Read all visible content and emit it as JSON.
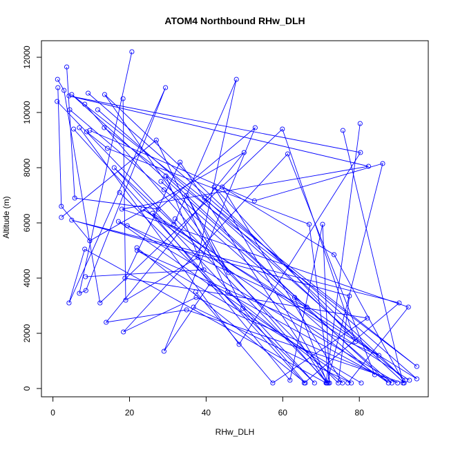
{
  "chart_data": {
    "type": "line",
    "title": "ATOM4 Northbound RHw_DLH",
    "xlabel": "RHw_DLH",
    "ylabel": "Altitude (m)",
    "xlim": [
      -3,
      98
    ],
    "ylim": [
      -300,
      12600
    ],
    "x_ticks": [
      0,
      20,
      40,
      60,
      80
    ],
    "y_ticks": [
      0,
      2000,
      4000,
      6000,
      8000,
      10000,
      12000
    ],
    "x_tick_labels": [
      "0",
      "20",
      "40",
      "60",
      "80"
    ],
    "y_tick_labels": [
      "0",
      "2000",
      "4000",
      "6000",
      "8000",
      "10000",
      "12000"
    ],
    "grid": false,
    "marker": "open-circle",
    "color": "#0000ff",
    "series": [
      {
        "points": [
          [
            20.6,
            12200
          ],
          [
            6.9,
            3450
          ],
          [
            8.6,
            3550
          ],
          [
            29.4,
            10900
          ],
          [
            4.2,
            3100
          ],
          [
            8.3,
            5050
          ],
          [
            71.3,
            200
          ],
          [
            80.2,
            9600
          ]
        ]
      },
      {
        "points": [
          [
            18.3,
            10500
          ],
          [
            19.0,
            3200
          ],
          [
            37.9,
            4750
          ],
          [
            47.9,
            11200
          ],
          [
            31.6,
            5950
          ],
          [
            16.0,
            8000
          ],
          [
            68.3,
            200
          ],
          [
            17.4,
            7100
          ]
        ]
      },
      {
        "points": [
          [
            3.6,
            11650
          ],
          [
            5.7,
            6900
          ],
          [
            27.5,
            6500
          ],
          [
            52.8,
            9450
          ],
          [
            29.0,
            1350
          ],
          [
            41.0,
            3800
          ],
          [
            88.5,
            200
          ],
          [
            28.2,
            7500
          ]
        ]
      },
      {
        "points": [
          [
            1.3,
            10900
          ],
          [
            2.2,
            6600
          ],
          [
            9.6,
            5350
          ],
          [
            49.9,
            8550
          ],
          [
            13.9,
            2400
          ],
          [
            34.9,
            2850
          ],
          [
            91.4,
            200
          ],
          [
            75.7,
            9350
          ]
        ]
      },
      {
        "points": [
          [
            1.2,
            11200
          ],
          [
            2.9,
            10800
          ],
          [
            12.3,
            3100
          ],
          [
            59.9,
            9400
          ],
          [
            79.0,
            1700
          ],
          [
            42.1,
            7300
          ],
          [
            71.9,
            200
          ],
          [
            1.1,
            10400
          ]
        ]
      },
      {
        "points": [
          [
            4.4,
            10100
          ],
          [
            29.0,
            7200
          ],
          [
            84.0,
            500
          ],
          [
            61.3,
            8500
          ],
          [
            18.4,
            2050
          ],
          [
            37.4,
            3300
          ],
          [
            90.0,
            200
          ],
          [
            19.4,
            5900
          ]
        ]
      },
      {
        "points": [
          [
            5.4,
            9400
          ],
          [
            65.6,
            200
          ],
          [
            90.4,
            3100
          ],
          [
            4.9,
            6100
          ],
          [
            77.4,
            3350
          ],
          [
            74.5,
            200
          ],
          [
            31.9,
            6150
          ]
        ]
      },
      {
        "points": [
          [
            6.9,
            9450
          ],
          [
            48.6,
            1600
          ],
          [
            80.3,
            8550
          ],
          [
            4.2,
            10600
          ],
          [
            82.4,
            8050
          ],
          [
            18.0,
            6500
          ],
          [
            92.8,
            2950
          ],
          [
            77.0,
            200
          ]
        ]
      },
      {
        "points": [
          [
            8.8,
            9300
          ],
          [
            14.2,
            8700
          ],
          [
            66.9,
            5950
          ],
          [
            72.2,
            200
          ],
          [
            70.4,
            5950
          ],
          [
            61.9,
            300
          ],
          [
            26.0,
            6350
          ],
          [
            93.1,
            300
          ]
        ]
      },
      {
        "points": [
          [
            9.6,
            9350
          ],
          [
            52.6,
            6800
          ],
          [
            86.1,
            8150
          ],
          [
            71.6,
            200
          ],
          [
            63.1,
            3300
          ],
          [
            85.1,
            1200
          ],
          [
            22.0,
            5000
          ],
          [
            80.5,
            200
          ]
        ]
      },
      {
        "points": [
          [
            13.4,
            9450
          ],
          [
            95.0,
            800
          ],
          [
            4.9,
            10650
          ],
          [
            66.3,
            2950
          ],
          [
            17.1,
            6050
          ],
          [
            77.9,
            200
          ],
          [
            36.7,
            2950
          ]
        ]
      },
      {
        "points": [
          [
            8.3,
            10300
          ],
          [
            71.5,
            200
          ],
          [
            33.2,
            8200
          ],
          [
            18.8,
            4000
          ],
          [
            82.1,
            2550
          ],
          [
            57.4,
            200
          ],
          [
            37.3,
            3500
          ]
        ]
      },
      {
        "points": [
          [
            9.2,
            10700
          ],
          [
            95.0,
            350
          ],
          [
            23.5,
            6500
          ],
          [
            87.6,
            200
          ],
          [
            29.5,
            7700
          ],
          [
            39.4,
            4300
          ],
          [
            8.5,
            4050
          ]
        ]
      },
      {
        "points": [
          [
            11.7,
            10100
          ],
          [
            92.0,
            300
          ],
          [
            13.5,
            10650
          ],
          [
            45.9,
            4200
          ],
          [
            34.9,
            7000
          ],
          [
            49.6,
            2900
          ],
          [
            65.9,
            200
          ],
          [
            21.9,
            5100
          ]
        ]
      },
      {
        "points": [
          [
            2.2,
            6200
          ],
          [
            27.0,
            9000
          ],
          [
            45.6,
            3500
          ],
          [
            75.6,
            200
          ],
          [
            44.2,
            7300
          ],
          [
            73.4,
            4850
          ],
          [
            91.7,
            200
          ],
          [
            39.6,
            6900
          ]
        ]
      }
    ]
  }
}
